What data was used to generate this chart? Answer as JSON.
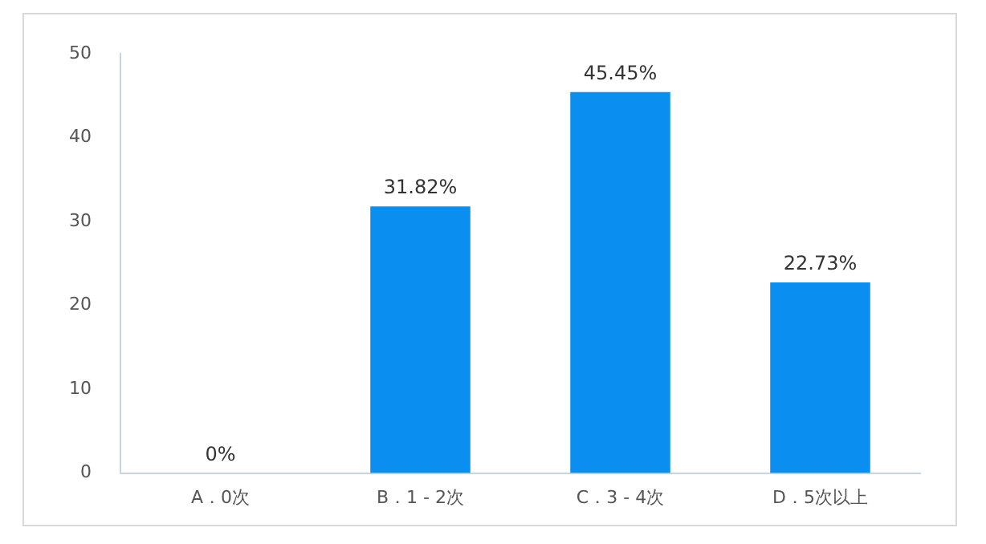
{
  "chart_data": {
    "type": "bar",
    "categories": [
      "A．0次",
      "B．1 - 2次",
      "C．3 - 4次",
      "D．5次以上"
    ],
    "values": [
      0,
      31.82,
      45.45,
      22.73
    ],
    "value_labels": [
      "0%",
      "31.82%",
      "45.45%",
      "22.73%"
    ],
    "color": "#0a8ef0",
    "ylim": [
      0,
      50
    ],
    "yticks": [
      0,
      10,
      20,
      30,
      40,
      50
    ],
    "grid": false,
    "legend": false
  }
}
